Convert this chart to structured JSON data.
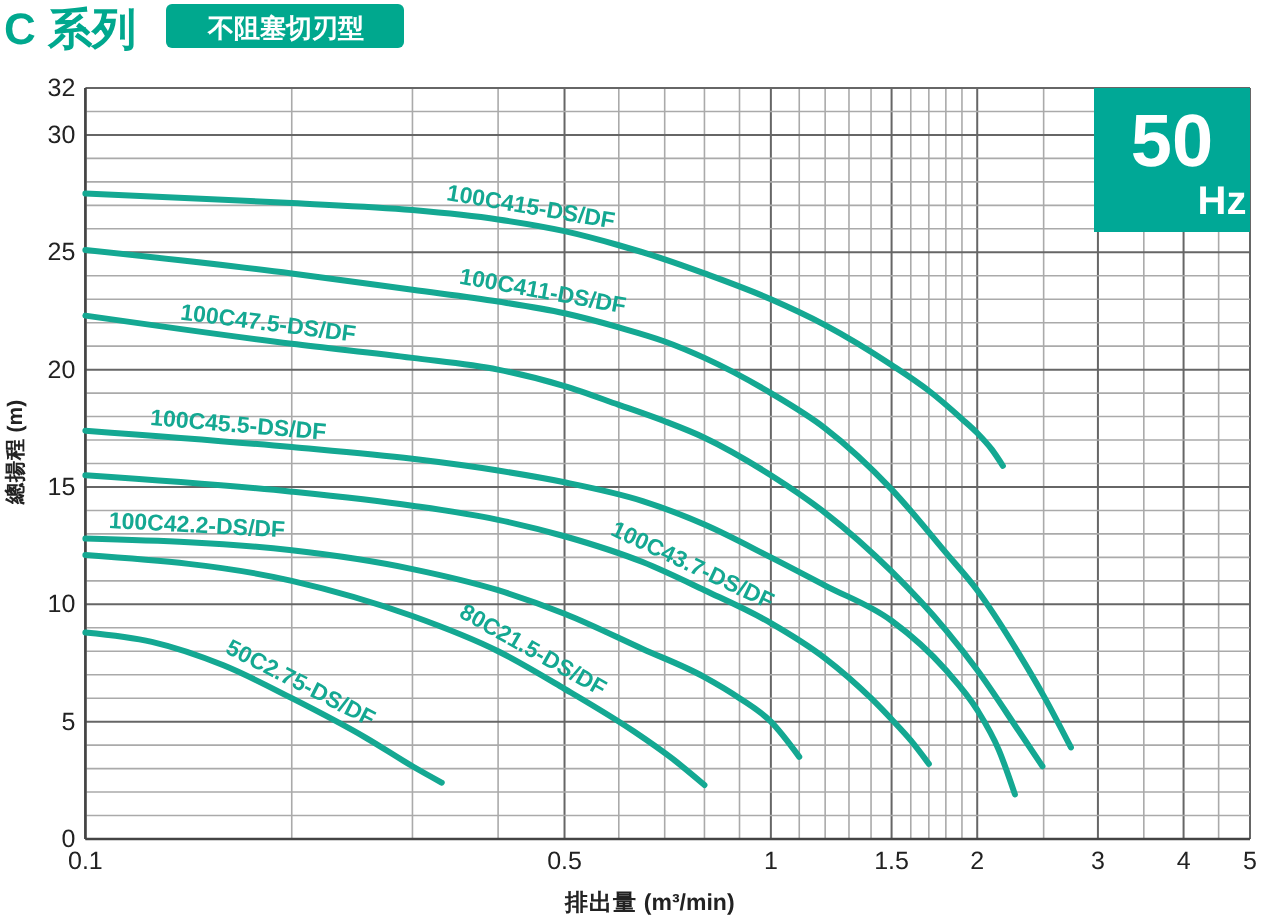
{
  "chart_data": {
    "type": "line",
    "title": "C 系列",
    "subtitle": "不阻塞切刃型",
    "xlabel": "排出量 (m³/min)",
    "ylabel": "總揚程 (m)",
    "annotations": [
      "50",
      "Hz"
    ],
    "log": "x",
    "grid": true,
    "xlim": [
      0.1,
      5
    ],
    "ylim": [
      0,
      32
    ],
    "xticks": [
      0.1,
      {
        "value": 0.2,
        "label": null
      },
      {
        "value": 0.3,
        "label": null
      },
      {
        "value": 0.4,
        "label": null
      },
      0.5,
      {
        "value": 0.6,
        "label": null
      },
      {
        "value": 0.7,
        "label": null
      },
      {
        "value": 0.8,
        "label": null
      },
      {
        "value": 0.9,
        "label": null
      },
      1,
      {
        "value": 1.1,
        "label": null
      },
      {
        "value": 1.2,
        "label": null
      },
      {
        "value": 1.3,
        "label": null
      },
      {
        "value": 1.4,
        "label": null
      },
      1.5,
      {
        "value": 1.6,
        "label": null
      },
      {
        "value": 1.7,
        "label": null
      },
      {
        "value": 1.8,
        "label": null
      },
      {
        "value": 1.9,
        "label": null
      },
      2,
      {
        "value": 2.5,
        "label": null
      },
      3,
      {
        "value": 3.5,
        "label": null
      },
      4,
      {
        "value": 4.5,
        "label": null
      },
      5
    ],
    "yticks": [
      0,
      {
        "value": 1,
        "label": null
      },
      {
        "value": 2,
        "label": null
      },
      {
        "value": 3,
        "label": null
      },
      {
        "value": 4,
        "label": null
      },
      5,
      {
        "value": 6,
        "label": null
      },
      {
        "value": 7,
        "label": null
      },
      {
        "value": 8,
        "label": null
      },
      {
        "value": 9,
        "label": null
      },
      10,
      {
        "value": 11,
        "label": null
      },
      {
        "value": 12,
        "label": null
      },
      {
        "value": 13,
        "label": null
      },
      {
        "value": 14,
        "label": null
      },
      15,
      {
        "value": 16,
        "label": null
      },
      {
        "value": 17,
        "label": null
      },
      {
        "value": 18,
        "label": null
      },
      {
        "value": 19,
        "label": null
      },
      20,
      {
        "value": 21,
        "label": null
      },
      {
        "value": 22,
        "label": null
      },
      {
        "value": 23,
        "label": null
      },
      {
        "value": 24,
        "label": null
      },
      25,
      {
        "value": 26,
        "label": null
      },
      {
        "value": 27,
        "label": null
      },
      {
        "value": 28,
        "label": null
      },
      {
        "value": 29,
        "label": null
      },
      30,
      {
        "value": 31,
        "label": null
      },
      32
    ],
    "series": [
      {
        "name": "100C415-DS/DF",
        "color": "#14a892",
        "x": [
          0.1,
          0.2,
          0.3,
          0.4,
          0.5,
          0.6,
          0.7,
          0.8,
          1,
          1.2,
          1.5,
          1.7,
          1.9,
          2,
          2.1,
          2.18
        ],
        "values": [
          27.5,
          27.1,
          26.8,
          26.4,
          25.9,
          25.3,
          24.7,
          24.1,
          23.0,
          21.9,
          20.2,
          19.1,
          17.9,
          17.3,
          16.6,
          15.9
        ]
      },
      {
        "name": "100C411-DS/DF",
        "color": "#14a892",
        "x": [
          0.1,
          0.2,
          0.3,
          0.4,
          0.5,
          0.6,
          0.7,
          0.8,
          1,
          1.2,
          1.5,
          1.8,
          2,
          2.3,
          2.5,
          2.74
        ],
        "values": [
          25.1,
          24.1,
          23.4,
          22.9,
          22.4,
          21.8,
          21.2,
          20.5,
          19.0,
          17.5,
          14.9,
          12.2,
          10.6,
          7.9,
          6.1,
          3.9
        ]
      },
      {
        "name": "100C47.5-DS/DF",
        "color": "#14a892",
        "x": [
          0.1,
          0.2,
          0.3,
          0.4,
          0.5,
          0.6,
          0.7,
          0.8,
          1,
          1.2,
          1.5,
          1.8,
          2,
          2.3,
          2.49
        ],
        "values": [
          22.3,
          21.1,
          20.5,
          20.0,
          19.3,
          18.5,
          17.8,
          17.1,
          15.5,
          13.9,
          11.4,
          8.9,
          7.2,
          4.6,
          3.1
        ]
      },
      {
        "name": "100C45.5-DS/DF",
        "color": "#14a892",
        "x": [
          0.1,
          0.2,
          0.3,
          0.4,
          0.5,
          0.65,
          0.8,
          1,
          1.2,
          1.5,
          1.8,
          2,
          2.15,
          2.27
        ],
        "values": [
          17.4,
          16.7,
          16.2,
          15.7,
          15.2,
          14.4,
          13.4,
          12.0,
          10.8,
          9.3,
          7.2,
          5.5,
          3.8,
          1.9
        ]
      },
      {
        "name": "100C43.7-DS/DF",
        "color": "#14a892",
        "x": [
          0.1,
          0.2,
          0.3,
          0.4,
          0.5,
          0.65,
          0.8,
          1,
          1.2,
          1.4,
          1.5,
          1.6,
          1.7
        ],
        "values": [
          15.5,
          14.8,
          14.2,
          13.6,
          12.9,
          11.8,
          10.6,
          9.2,
          7.7,
          6.0,
          5.1,
          4.2,
          3.2
        ]
      },
      {
        "name": "100C42.2-DS/DF",
        "color": "#14a892",
        "x": [
          0.1,
          0.2,
          0.3,
          0.4,
          0.5,
          0.65,
          0.8,
          0.9,
          1,
          1.1
        ],
        "values": [
          12.8,
          12.3,
          11.5,
          10.6,
          9.6,
          8.1,
          6.9,
          6.0,
          5.0,
          3.5
        ]
      },
      {
        "name": "80C21.5-DS/DF",
        "color": "#14a892",
        "x": [
          0.1,
          0.2,
          0.3,
          0.4,
          0.5,
          0.63,
          0.72,
          0.8
        ],
        "values": [
          12.1,
          11.0,
          9.5,
          8.0,
          6.4,
          4.6,
          3.4,
          2.3
        ]
      },
      {
        "name": "50C2.75-DS/DF",
        "color": "#14a892",
        "x": [
          0.1,
          0.125,
          0.159,
          0.2,
          0.257,
          0.3,
          0.331
        ],
        "values": [
          8.8,
          8.4,
          7.4,
          6.0,
          4.3,
          3.1,
          2.4
        ]
      }
    ]
  }
}
